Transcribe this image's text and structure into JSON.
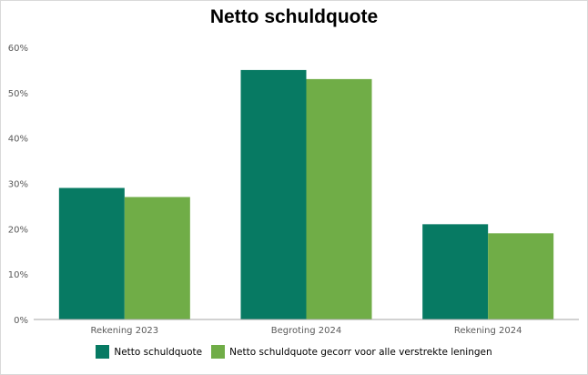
{
  "chart_data": {
    "type": "bar",
    "title": "Netto schuldquote",
    "categories": [
      "Rekening 2023",
      "Begroting 2024",
      "Rekening 2024"
    ],
    "series": [
      {
        "name": "Netto schuldquote",
        "values": [
          29,
          55,
          21
        ],
        "color": "#077a63"
      },
      {
        "name": "Netto schuldquote gecorr voor alle verstrekte leningen",
        "values": [
          27,
          53,
          19
        ],
        "color": "#70ad47"
      }
    ],
    "yticks": [
      "0%",
      "10%",
      "20%",
      "30%",
      "40%",
      "50%",
      "60%"
    ],
    "ylim": [
      0,
      60
    ],
    "ylabel_unit": "%",
    "grid": false,
    "legend_position": "bottom"
  }
}
